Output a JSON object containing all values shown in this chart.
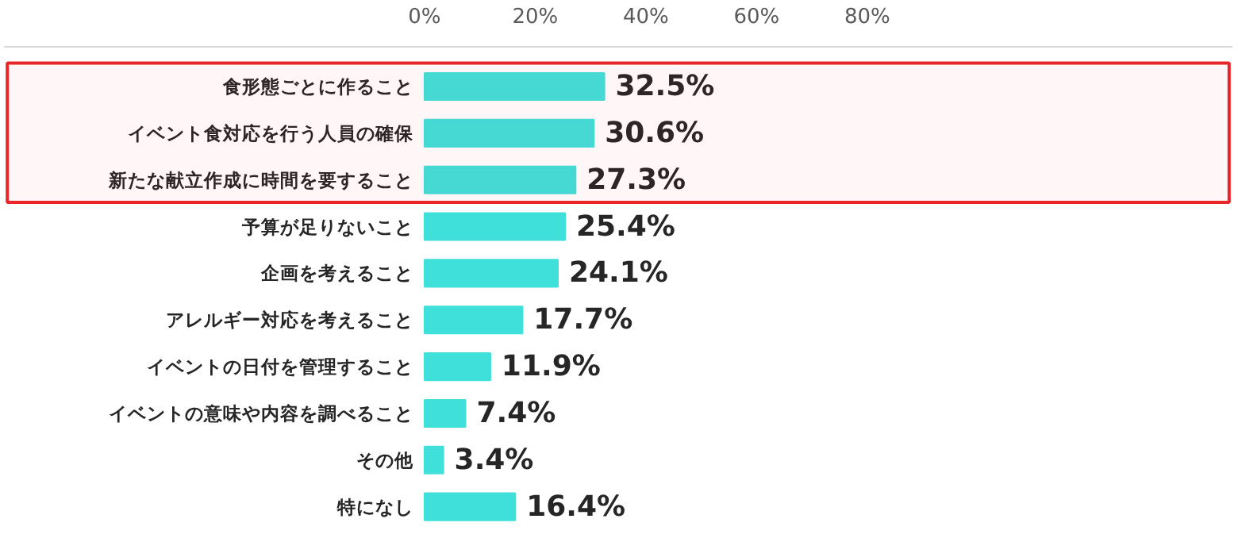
{
  "chart_data": {
    "type": "bar",
    "orientation": "horizontal",
    "categories": [
      "食形態ごとに作ること",
      "イベント食対応を行う人員の確保",
      "新たな献立作成に時間を要すること",
      "予算が足りないこと",
      "企画を考えること",
      "アレルギー対応を考えること",
      "イベントの日付を管理すること",
      "イベントの意味や内容を調べること",
      "その他",
      "特になし"
    ],
    "values": [
      32.5,
      30.6,
      27.3,
      25.4,
      24.1,
      17.7,
      11.9,
      7.4,
      3.4,
      16.4
    ],
    "value_labels": [
      "32.5%",
      "30.6%",
      "27.3%",
      "25.4%",
      "24.1%",
      "17.7%",
      "11.9%",
      "7.4%",
      "3.4%",
      "16.4%"
    ],
    "color": "#40e0da",
    "xlim": [
      -76,
      146
    ],
    "xticks": [
      {
        "value": 0,
        "label": "0%"
      },
      {
        "value": 20,
        "label": "20%"
      },
      {
        "value": 40,
        "label": "40%"
      },
      {
        "value": 60,
        "label": "60%"
      },
      {
        "value": 80,
        "label": "80%"
      }
    ],
    "bands": [
      {
        "axis": "y",
        "from": "食形態ごとに作ること",
        "to": "新たな献立作成に時間を要すること",
        "color": "#e8262a"
      }
    ],
    "grid": false
  }
}
